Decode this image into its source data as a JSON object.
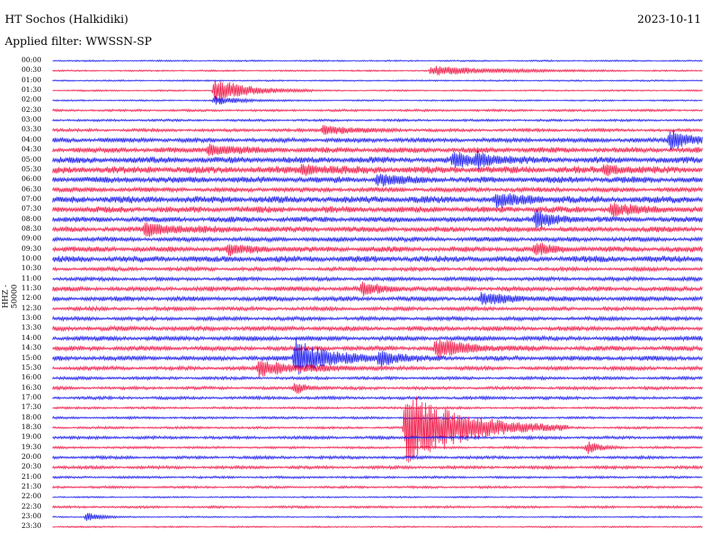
{
  "header": {
    "station": "HT Sochos (Halkidiki)",
    "date": "2023-10-11",
    "filter": "Applied filter: WWSSN-SP"
  },
  "chart_data": {
    "type": "line",
    "ylabel": "HHZ - 50000",
    "categories": [
      "00:00",
      "00:30",
      "01:00",
      "01:30",
      "02:00",
      "02:30",
      "03:00",
      "03:30",
      "04:00",
      "04:30",
      "05:00",
      "05:30",
      "06:00",
      "06:30",
      "07:00",
      "07:30",
      "08:00",
      "08:30",
      "09:00",
      "09:30",
      "10:00",
      "10:30",
      "11:00",
      "11:30",
      "12:00",
      "12:30",
      "13:00",
      "13:30",
      "14:00",
      "14:30",
      "15:00",
      "15:30",
      "16:00",
      "16:30",
      "17:00",
      "17:30",
      "18:00",
      "18:30",
      "19:00",
      "19:30",
      "20:00",
      "20:30",
      "21:00",
      "21:30",
      "22:00",
      "22:30",
      "23:00",
      "23:30"
    ],
    "noise_levels": [
      1,
      1,
      1,
      1,
      1,
      1.5,
      1.5,
      2,
      3,
      3.5,
      4,
      4.5,
      4,
      3,
      4.5,
      4,
      3.5,
      3.5,
      3,
      3.5,
      4,
      2.5,
      2.5,
      3,
      3,
      2.5,
      2.5,
      3,
      3,
      3,
      3,
      2.5,
      2,
      2,
      2,
      1.5,
      1.5,
      1.5,
      2,
      1.5,
      2,
      2,
      1.5,
      1.5,
      1,
      1.5,
      1,
      1
    ],
    "events": [
      {
        "row": 1,
        "minute": 17.5,
        "amp": 7,
        "dur": 3
      },
      {
        "row": 3,
        "minute": 7.5,
        "amp": 18,
        "dur": 1.5
      },
      {
        "row": 4,
        "minute": 7.5,
        "amp": 6,
        "dur": 1.2
      },
      {
        "row": 7,
        "minute": 12.5,
        "amp": 7,
        "dur": 1.5
      },
      {
        "row": 8,
        "minute": 28.5,
        "amp": 15,
        "dur": 1
      },
      {
        "row": 9,
        "minute": 7.2,
        "amp": 8,
        "dur": 1.2
      },
      {
        "row": 10,
        "minute": 18.5,
        "amp": 10,
        "dur": 1.2
      },
      {
        "row": 10,
        "minute": 19.6,
        "amp": 9,
        "dur": 0.8
      },
      {
        "row": 11,
        "minute": 11.5,
        "amp": 7,
        "dur": 1.2
      },
      {
        "row": 11,
        "minute": 25.5,
        "amp": 7,
        "dur": 0.8
      },
      {
        "row": 12,
        "minute": 15,
        "amp": 9,
        "dur": 1
      },
      {
        "row": 14,
        "minute": 20.5,
        "amp": 9,
        "dur": 1.2
      },
      {
        "row": 15,
        "minute": 25.8,
        "amp": 9,
        "dur": 1
      },
      {
        "row": 16,
        "minute": 22.3,
        "amp": 12,
        "dur": 1
      },
      {
        "row": 17,
        "minute": 4.3,
        "amp": 10,
        "dur": 1.5
      },
      {
        "row": 19,
        "minute": 8.1,
        "amp": 8,
        "dur": 1
      },
      {
        "row": 19,
        "minute": 22.3,
        "amp": 9,
        "dur": 0.8
      },
      {
        "row": 23,
        "minute": 14.3,
        "amp": 9,
        "dur": 1
      },
      {
        "row": 24,
        "minute": 19.8,
        "amp": 8,
        "dur": 1.5
      },
      {
        "row": 29,
        "minute": 17.7,
        "amp": 14,
        "dur": 1.5
      },
      {
        "row": 30,
        "minute": 11.2,
        "amp": 28,
        "dur": 1.5
      },
      {
        "row": 30,
        "minute": 15.1,
        "amp": 12,
        "dur": 1
      },
      {
        "row": 31,
        "minute": 9.5,
        "amp": 12,
        "dur": 2
      },
      {
        "row": 33,
        "minute": 11.2,
        "amp": 8,
        "dur": 0.6
      },
      {
        "row": 37,
        "minute": 16.3,
        "amp": 58,
        "dur": 2.5
      },
      {
        "row": 39,
        "minute": 24.7,
        "amp": 9,
        "dur": 0.6
      },
      {
        "row": 46,
        "minute": 1.6,
        "amp": 8,
        "dur": 0.5
      }
    ],
    "colors": {
      "odd_rows": "#1a1aee",
      "even_rows": "#f01848"
    }
  }
}
